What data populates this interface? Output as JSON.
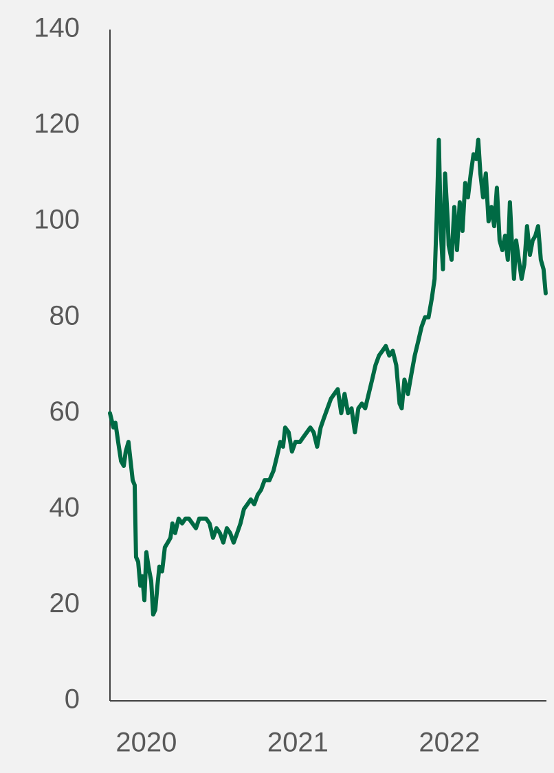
{
  "chart_data": {
    "type": "line",
    "x": [
      2019.76,
      2019.783,
      2019.796,
      2019.814,
      2019.833,
      2019.851,
      2019.864,
      2019.882,
      2019.896,
      2019.91,
      2019.923,
      2019.932,
      2019.946,
      2019.96,
      2019.973,
      2019.987,
      2020.0,
      2020.014,
      2020.032,
      2020.045,
      2020.059,
      2020.073,
      2020.086,
      2020.104,
      2020.122,
      2020.141,
      2020.159,
      2020.172,
      2020.19,
      2020.213,
      2020.236,
      2020.258,
      2020.281,
      2020.304,
      2020.327,
      2020.349,
      2020.372,
      2020.395,
      2020.417,
      2020.44,
      2020.463,
      2020.485,
      2020.508,
      2020.531,
      2020.553,
      2020.576,
      2020.599,
      2020.621,
      2020.644,
      2020.667,
      2020.689,
      2020.712,
      2020.735,
      2020.757,
      2020.78,
      2020.812,
      2020.839,
      2020.862,
      2020.884,
      2020.902,
      2020.916,
      2020.939,
      2020.961,
      2020.984,
      2021.014,
      2021.036,
      2021.059,
      2021.082,
      2021.104,
      2021.127,
      2021.15,
      2021.172,
      2021.195,
      2021.218,
      2021.24,
      2021.263,
      2021.286,
      2021.308,
      2021.331,
      2021.354,
      2021.376,
      2021.399,
      2021.422,
      2021.444,
      2021.467,
      2021.49,
      2021.512,
      2021.535,
      2021.558,
      2021.58,
      2021.603,
      2021.626,
      2021.649,
      2021.671,
      2021.685,
      2021.703,
      2021.726,
      2021.748,
      2021.771,
      2021.794,
      2021.816,
      2021.839,
      2021.862,
      2021.884,
      2021.902,
      2021.916,
      2021.93,
      2021.943,
      2021.957,
      2021.971,
      2021.989,
      2021.995,
      2022.014,
      2022.032,
      2022.05,
      2022.068,
      2022.086,
      2022.104,
      2022.122,
      2022.141,
      2022.159,
      2022.177,
      2022.19,
      2022.204,
      2022.222,
      2022.24,
      2022.258,
      2022.277,
      2022.295,
      2022.313,
      2022.331,
      2022.349,
      2022.367,
      2022.385,
      2022.399,
      2022.413,
      2022.426,
      2022.44,
      2022.458,
      2022.476,
      2022.494,
      2022.512,
      2022.531,
      2022.549,
      2022.567,
      2022.585,
      2022.603,
      2022.621,
      2022.635
    ],
    "series": [
      {
        "color": "#006a44",
        "values": [
          60,
          57,
          58,
          54,
          50,
          49,
          52,
          54,
          50,
          46,
          45,
          30,
          29,
          24,
          26,
          21,
          31,
          28,
          25,
          18,
          19,
          24,
          28,
          27,
          32,
          33,
          34,
          37,
          35,
          38,
          37,
          38,
          38,
          37,
          36,
          38,
          38,
          38,
          37,
          34,
          36,
          35,
          33,
          36,
          35,
          33,
          35,
          37,
          40,
          41,
          42,
          41,
          43,
          44,
          46,
          46,
          48,
          51,
          54,
          53,
          57,
          56,
          52,
          54,
          54,
          55,
          56,
          57,
          56,
          53,
          57,
          59,
          61,
          63,
          64,
          65,
          60,
          64,
          60,
          61,
          56,
          61,
          62,
          61,
          64,
          67,
          70,
          72,
          73,
          74,
          72,
          73,
          70,
          62,
          61,
          67,
          64,
          68,
          72,
          75,
          78,
          80,
          80,
          84,
          88,
          101,
          117,
          98,
          90,
          110,
          100,
          95,
          92,
          103,
          94,
          104,
          98,
          108,
          105,
          110,
          114,
          113,
          117,
          110,
          105,
          110,
          100,
          103,
          99,
          107,
          96,
          94,
          97,
          92,
          104,
          95,
          88,
          96,
          92,
          88,
          91,
          99,
          93,
          96,
          97,
          99,
          92,
          90,
          85
        ]
      }
    ],
    "xlim": [
      2019.76,
      2022.64
    ],
    "xticks": [
      2020,
      2021,
      2022
    ],
    "ylim": [
      0,
      140
    ],
    "yticks": [
      0,
      20,
      40,
      60,
      80,
      100,
      120,
      140
    ]
  }
}
